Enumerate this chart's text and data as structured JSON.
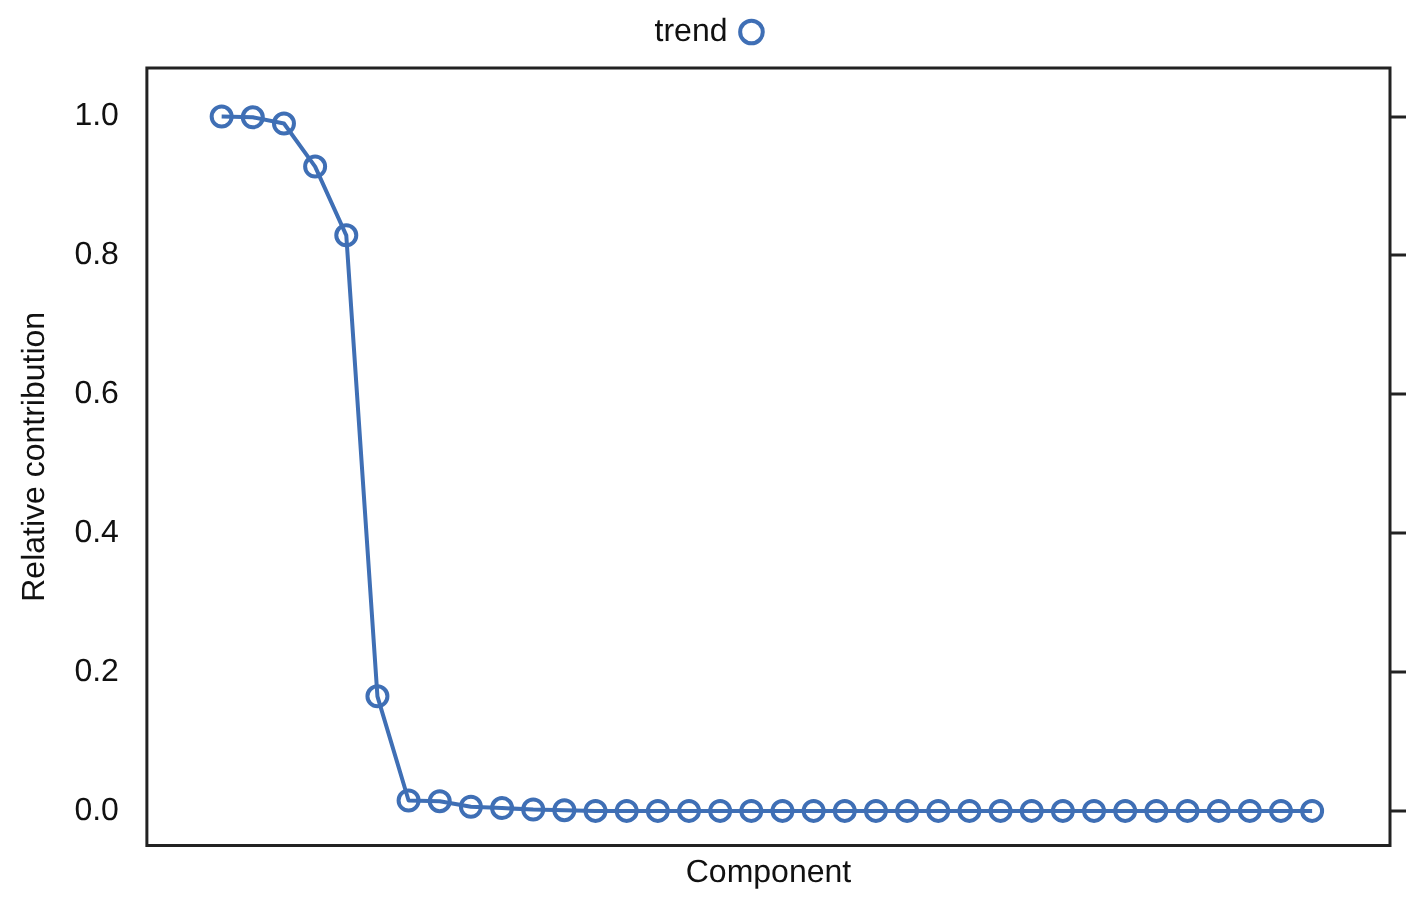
{
  "chart_data": {
    "type": "line",
    "xlabel": "Component",
    "ylabel": "Relative contribution",
    "categories": [
      null,
      null,
      null,
      null,
      null,
      null,
      null,
      null,
      null,
      null,
      null,
      null,
      null,
      null,
      null,
      null,
      null,
      null,
      null,
      null,
      null,
      null,
      null,
      null,
      null,
      null,
      null,
      null,
      null,
      null,
      null,
      null,
      null,
      null,
      null,
      null
    ],
    "series": [
      {
        "name": "trend",
        "color": "#3f6fb5",
        "values": [
          1.0,
          0.999,
          0.99,
          0.928,
          0.829,
          0.165,
          0.015,
          0.014,
          0.006,
          0.004,
          0.002,
          0.001,
          0,
          0,
          0,
          0,
          0,
          0,
          0,
          0,
          0,
          0,
          0,
          0,
          0,
          0,
          0,
          0,
          0,
          0,
          0,
          0,
          0,
          0,
          0,
          0
        ]
      }
    ],
    "ylim": [
      -0.05,
      1.07
    ],
    "yticks": [
      {
        "value": 0,
        "label": "0.0"
      },
      {
        "value": 0.2,
        "label": "0.2"
      },
      {
        "value": 0.4,
        "label": "0.4"
      },
      {
        "value": 0.6,
        "label": "0.6"
      },
      {
        "value": 0.8,
        "label": "0.8"
      },
      {
        "value": 1,
        "label": "1.0"
      }
    ],
    "tick_labels": "y",
    "grid": false,
    "legend": "top",
    "marker": "circle",
    "line_style": "solid"
  }
}
